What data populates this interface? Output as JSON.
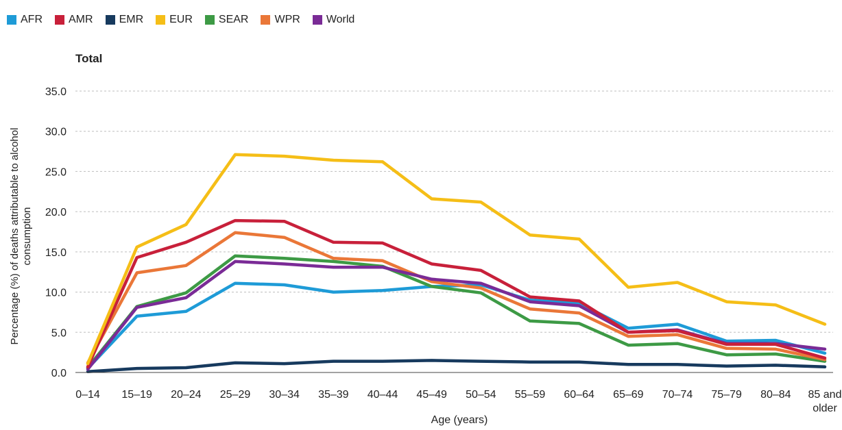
{
  "chart_data": {
    "type": "line",
    "title": "Total",
    "xlabel": "Age (years)",
    "ylabel": "Percentage (%) of deaths attributable to alcohol consumption",
    "ylim": [
      0,
      35
    ],
    "yticks": [
      "0.0",
      "5.0",
      "10.0",
      "15.0",
      "20.0",
      "25.0",
      "30.0",
      "35.0"
    ],
    "categories": [
      "0–14",
      "15–19",
      "20–24",
      "25–29",
      "30–34",
      "35–39",
      "40–44",
      "45–49",
      "50–54",
      "55–59",
      "60–64",
      "65–69",
      "70–74",
      "75–79",
      "80–84",
      "85 and older"
    ],
    "grid": true,
    "legend_position": "top-left",
    "series": [
      {
        "name": "AFR",
        "color": "#1e9bd7",
        "values": [
          0.5,
          7.0,
          7.6,
          11.1,
          10.9,
          10.0,
          10.2,
          10.7,
          10.9,
          9.0,
          8.6,
          5.5,
          6.0,
          3.9,
          4.0,
          2.4
        ]
      },
      {
        "name": "AMR",
        "color": "#c8203a",
        "values": [
          0.7,
          14.3,
          16.2,
          18.9,
          18.8,
          16.2,
          16.1,
          13.5,
          12.7,
          9.4,
          8.9,
          5.0,
          5.2,
          3.5,
          3.5,
          1.8
        ]
      },
      {
        "name": "EMR",
        "color": "#173a5e",
        "values": [
          0.1,
          0.5,
          0.6,
          1.2,
          1.1,
          1.4,
          1.4,
          1.5,
          1.4,
          1.3,
          1.3,
          1.0,
          1.0,
          0.8,
          0.9,
          0.7
        ]
      },
      {
        "name": "EUR",
        "color": "#f5be17",
        "values": [
          1.1,
          15.6,
          18.4,
          27.1,
          26.9,
          26.4,
          26.2,
          21.6,
          21.2,
          17.1,
          16.6,
          10.6,
          11.2,
          8.8,
          8.4,
          6.0
        ]
      },
      {
        "name": "SEAR",
        "color": "#3d9a45",
        "values": [
          0.6,
          8.2,
          9.9,
          14.5,
          14.2,
          13.8,
          13.2,
          10.7,
          9.9,
          6.4,
          6.1,
          3.4,
          3.6,
          2.2,
          2.3,
          1.4
        ]
      },
      {
        "name": "WPR",
        "color": "#ea7738",
        "values": [
          1.2,
          12.4,
          13.3,
          17.4,
          16.8,
          14.2,
          13.9,
          11.3,
          10.5,
          7.9,
          7.4,
          4.5,
          4.7,
          3.0,
          2.9,
          1.6
        ]
      },
      {
        "name": "World",
        "color": "#7a2b96",
        "values": [
          0.4,
          8.1,
          9.3,
          13.8,
          13.5,
          13.1,
          13.1,
          11.6,
          11.1,
          8.8,
          8.3,
          5.0,
          5.3,
          3.6,
          3.6,
          2.9
        ]
      }
    ]
  }
}
